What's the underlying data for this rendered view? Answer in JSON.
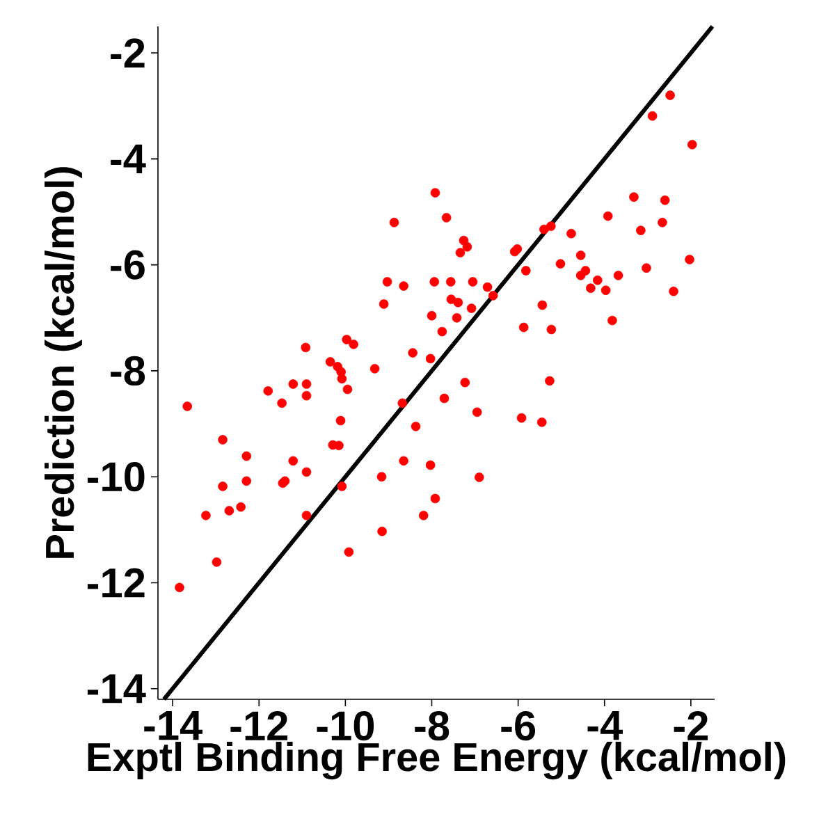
{
  "chart_data": {
    "type": "scatter",
    "xlabel": "Exptl Binding Free Energy (kcal/mol)",
    "ylabel": "Prediction (kcal/mol)",
    "xlim": [
      -14.34,
      -1.45
    ],
    "ylim": [
      -14.2,
      -1.5
    ],
    "xticks": [
      -14,
      -12,
      -10,
      -8,
      -6,
      -4,
      -2
    ],
    "yticks": [
      -14,
      -12,
      -10,
      -8,
      -6,
      -4,
      -2
    ],
    "series": [
      {
        "color": "#ff0000",
        "marker": "circle",
        "x": [
          -13.84,
          -13.66,
          -13.23,
          -12.98,
          -12.84,
          -12.84,
          -12.69,
          -12.42,
          -12.29,
          -12.29,
          -11.79,
          -11.47,
          -11.45,
          -11.4,
          -11.21,
          -11.21,
          -10.92,
          -10.9,
          -10.9,
          -10.9,
          -10.9,
          -10.35,
          -10.29,
          -10.18,
          -10.15,
          -10.11,
          -10.1,
          -10.08,
          -10.08,
          -9.97,
          -9.95,
          -9.92,
          -9.81,
          -9.32,
          -9.16,
          -9.15,
          -9.11,
          -9.03,
          -8.87,
          -8.68,
          -8.65,
          -8.65,
          -8.44,
          -8.37,
          -8.19,
          -8.03,
          -8.03,
          -8.0,
          -7.94,
          -7.92,
          -7.92,
          -7.76,
          -7.71,
          -7.66,
          -7.56,
          -7.55,
          -7.42,
          -7.39,
          -7.34,
          -7.26,
          -7.23,
          -7.18,
          -7.08,
          -7.05,
          -6.95,
          -6.9,
          -6.71,
          -6.58,
          -6.08,
          -6.02,
          -5.92,
          -5.87,
          -5.82,
          -5.45,
          -5.44,
          -5.4,
          -5.27,
          -5.23,
          -5.24,
          -5.02,
          -4.77,
          -4.55,
          -4.55,
          -4.44,
          -4.32,
          -4.16,
          -3.97,
          -3.92,
          -3.82,
          -3.68,
          -3.32,
          -3.16,
          -3.03,
          -2.89,
          -2.66,
          -2.6,
          -2.48,
          -2.4,
          -2.03,
          -1.97
        ],
        "values": [
          -12.09,
          -8.67,
          -10.73,
          -11.61,
          -9.3,
          -10.18,
          -10.64,
          -10.57,
          -9.61,
          -10.08,
          -8.38,
          -8.61,
          -10.12,
          -10.08,
          -8.25,
          -9.7,
          -7.56,
          -8.25,
          -8.47,
          -9.91,
          -10.73,
          -7.83,
          -9.4,
          -7.92,
          -9.41,
          -8.94,
          -8.02,
          -8.15,
          -10.18,
          -7.41,
          -8.35,
          -11.42,
          -7.5,
          -7.96,
          -10.0,
          -11.03,
          -6.74,
          -6.32,
          -5.2,
          -8.61,
          -9.7,
          -6.4,
          -7.66,
          -9.05,
          -10.73,
          -7.77,
          -9.78,
          -6.96,
          -6.32,
          -4.64,
          -10.41,
          -7.26,
          -8.52,
          -5.11,
          -6.32,
          -6.65,
          -7.0,
          -6.71,
          -5.77,
          -5.54,
          -8.22,
          -5.66,
          -6.82,
          -6.32,
          -8.78,
          -10.01,
          -6.42,
          -6.58,
          -5.75,
          -5.7,
          -8.89,
          -7.18,
          -6.11,
          -8.97,
          -6.76,
          -5.33,
          -8.19,
          -7.22,
          -5.27,
          -5.98,
          -5.41,
          -5.82,
          -6.2,
          -6.11,
          -6.44,
          -6.29,
          -6.48,
          -5.08,
          -7.05,
          -6.2,
          -4.72,
          -5.35,
          -6.06,
          -3.19,
          -5.2,
          -4.78,
          -2.8,
          -6.5,
          -5.9,
          -3.73
        ]
      },
      {
        "type": "line",
        "marker": "none",
        "color": "#000000",
        "x": [
          -14.2,
          -1.5
        ],
        "values": [
          -14.2,
          -1.5
        ]
      }
    ]
  }
}
